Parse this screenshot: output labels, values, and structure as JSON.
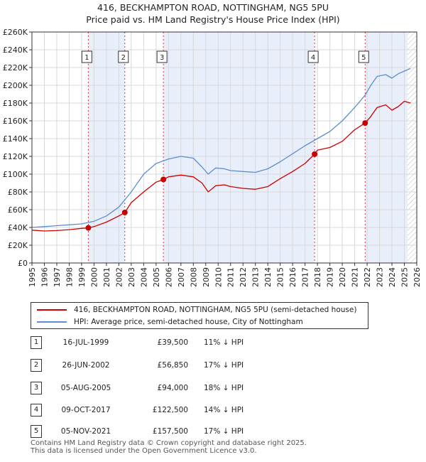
{
  "title": "416, BECKHAMPTON ROAD, NOTTINGHAM, NG5 5PU",
  "subtitle": "Price paid vs. HM Land Registry's House Price Index (HPI)",
  "colors": {
    "price_line": "#cc0000",
    "hpi_line": "#5b8fd0",
    "shade": "#e8eefa",
    "grid": "#d8d8d8",
    "vline": "#dd3333"
  },
  "chart_data": {
    "type": "line",
    "x_range": [
      1995,
      2026
    ],
    "ylim": [
      0,
      260000
    ],
    "y_ticks": [
      {
        "value": 0,
        "label": "£0"
      },
      {
        "value": 20000,
        "label": "£20K"
      },
      {
        "value": 40000,
        "label": "£40K"
      },
      {
        "value": 60000,
        "label": "£60K"
      },
      {
        "value": 80000,
        "label": "£80K"
      },
      {
        "value": 100000,
        "label": "£100K"
      },
      {
        "value": 120000,
        "label": "£120K"
      },
      {
        "value": 140000,
        "label": "£140K"
      },
      {
        "value": 160000,
        "label": "£160K"
      },
      {
        "value": 180000,
        "label": "£180K"
      },
      {
        "value": 200000,
        "label": "£200K"
      },
      {
        "value": 220000,
        "label": "£220K"
      },
      {
        "value": 240000,
        "label": "£240K"
      },
      {
        "value": 260000,
        "label": "£260K"
      }
    ],
    "x_ticks": [
      "1995",
      "1996",
      "1997",
      "1998",
      "1999",
      "2000",
      "2001",
      "2002",
      "2003",
      "2004",
      "2005",
      "2006",
      "2007",
      "2008",
      "2009",
      "2010",
      "2011",
      "2012",
      "2013",
      "2014",
      "2015",
      "2016",
      "2017",
      "2018",
      "2019",
      "2020",
      "2021",
      "2022",
      "2023",
      "2024",
      "2025",
      "2026"
    ],
    "hatch_from": 2025.25,
    "shaded_spans": [
      [
        1999.54,
        2002.48
      ],
      [
        2005.59,
        2017.77
      ],
      [
        2021.84,
        2025.25
      ]
    ],
    "series": [
      {
        "name": "416, BECKHAMPTON ROAD, NOTTINGHAM, NG5 5PU (semi-detached house)",
        "color": "#cc0000",
        "points": [
          [
            1995,
            37000
          ],
          [
            1996,
            36000
          ],
          [
            1997,
            36500
          ],
          [
            1998,
            37500
          ],
          [
            1999,
            39000
          ],
          [
            1999.54,
            39500
          ],
          [
            2000,
            41000
          ],
          [
            2001,
            46000
          ],
          [
            2002,
            53000
          ],
          [
            2002.48,
            56850
          ],
          [
            2003,
            68000
          ],
          [
            2004,
            80000
          ],
          [
            2005,
            91000
          ],
          [
            2005.59,
            94000
          ],
          [
            2006,
            97000
          ],
          [
            2007,
            99000
          ],
          [
            2008,
            97000
          ],
          [
            2008.7,
            90000
          ],
          [
            2009.2,
            80000
          ],
          [
            2009.8,
            87000
          ],
          [
            2010.5,
            88000
          ],
          [
            2011,
            86000
          ],
          [
            2012,
            84000
          ],
          [
            2013,
            83000
          ],
          [
            2014,
            86000
          ],
          [
            2015,
            95000
          ],
          [
            2016,
            103000
          ],
          [
            2017,
            112000
          ],
          [
            2017.77,
            122500
          ],
          [
            2018,
            127000
          ],
          [
            2019,
            130000
          ],
          [
            2020,
            137000
          ],
          [
            2021,
            150000
          ],
          [
            2021.84,
            157500
          ],
          [
            2022.3,
            165000
          ],
          [
            2022.8,
            175000
          ],
          [
            2023.5,
            178000
          ],
          [
            2024,
            172000
          ],
          [
            2024.5,
            176000
          ],
          [
            2025,
            182000
          ],
          [
            2025.5,
            180000
          ]
        ]
      },
      {
        "name": "HPI: Average price, semi-detached house, City of Nottingham",
        "color": "#5b8fd0",
        "points": [
          [
            1995,
            40000
          ],
          [
            1996,
            41000
          ],
          [
            1997,
            42000
          ],
          [
            1998,
            43000
          ],
          [
            1999,
            44000
          ],
          [
            2000,
            47000
          ],
          [
            2001,
            53000
          ],
          [
            2002,
            63000
          ],
          [
            2003,
            80000
          ],
          [
            2004,
            100000
          ],
          [
            2005,
            112000
          ],
          [
            2006,
            117000
          ],
          [
            2007,
            120000
          ],
          [
            2008,
            118000
          ],
          [
            2008.7,
            108000
          ],
          [
            2009.2,
            100000
          ],
          [
            2009.8,
            107000
          ],
          [
            2010.5,
            106000
          ],
          [
            2011,
            104000
          ],
          [
            2012,
            103000
          ],
          [
            2013,
            102000
          ],
          [
            2014,
            106000
          ],
          [
            2015,
            114000
          ],
          [
            2016,
            123000
          ],
          [
            2017,
            132000
          ],
          [
            2018,
            140000
          ],
          [
            2019,
            148000
          ],
          [
            2020,
            160000
          ],
          [
            2021,
            175000
          ],
          [
            2021.84,
            189000
          ],
          [
            2022.3,
            200000
          ],
          [
            2022.8,
            210000
          ],
          [
            2023.5,
            212000
          ],
          [
            2024,
            208000
          ],
          [
            2024.5,
            213000
          ],
          [
            2025,
            216000
          ],
          [
            2025.5,
            219000
          ]
        ]
      }
    ],
    "sale_markers": [
      {
        "id": "1",
        "x": 1999.54,
        "value": 39500
      },
      {
        "id": "2",
        "x": 2002.48,
        "value": 56850
      },
      {
        "id": "3",
        "x": 2005.59,
        "value": 94000
      },
      {
        "id": "4",
        "x": 2017.77,
        "value": 122500
      },
      {
        "id": "5",
        "x": 2021.84,
        "value": 157500
      }
    ]
  },
  "legend": {
    "items": [
      {
        "label": "416, BECKHAMPTON ROAD, NOTTINGHAM, NG5 5PU (semi-detached house)",
        "color": "#cc0000"
      },
      {
        "label": "HPI: Average price, semi-detached house, City of Nottingham",
        "color": "#5b8fd0"
      }
    ]
  },
  "sales": [
    {
      "num": "1",
      "date": "16-JUL-1999",
      "price": "£39,500",
      "hpi": "11% ↓ HPI"
    },
    {
      "num": "2",
      "date": "26-JUN-2002",
      "price": "£56,850",
      "hpi": "17% ↓ HPI"
    },
    {
      "num": "3",
      "date": "05-AUG-2005",
      "price": "£94,000",
      "hpi": "18% ↓ HPI"
    },
    {
      "num": "4",
      "date": "09-OCT-2017",
      "price": "£122,500",
      "hpi": "14% ↓ HPI"
    },
    {
      "num": "5",
      "date": "05-NOV-2021",
      "price": "£157,500",
      "hpi": "17% ↓ HPI"
    }
  ],
  "footer": {
    "line1": "Contains HM Land Registry data © Crown copyright and database right 2025.",
    "line2": "This data is licensed under the Open Government Licence v3.0."
  }
}
